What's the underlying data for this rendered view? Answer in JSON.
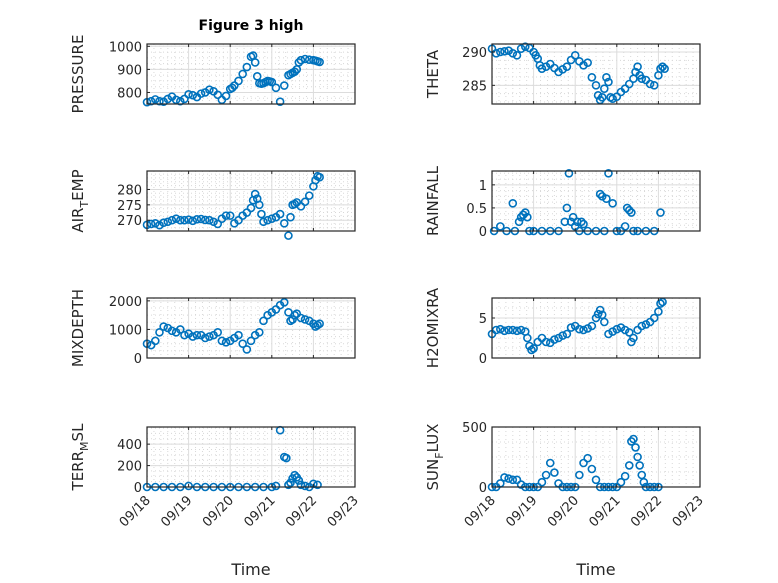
{
  "figure": {
    "title": "Figure 3 high",
    "xlabel": "Time",
    "marker_color": "#0072BD"
  },
  "chart_data": [
    {
      "type": "scatter",
      "name": "PRESSURE",
      "ylabel": "PRESSURE",
      "ylabel_parts": [
        "PRESSURE"
      ],
      "ylim": [
        750,
        1010
      ],
      "yticks": [
        800,
        900,
        1000
      ],
      "ytick_labels": [
        "800",
        "900",
        "1000"
      ],
      "xlim": [
        0,
        5
      ],
      "xticks": [
        0,
        1,
        2,
        3,
        4,
        5
      ],
      "xtick_labels": [
        "09/18",
        "09/19",
        "09/20",
        "09/21",
        "09/22",
        "09/23"
      ],
      "show_xtick_labels": false,
      "title": "Figure 3 high",
      "grid": true,
      "x": [
        0,
        0.1,
        0.2,
        0.3,
        0.4,
        0.5,
        0.6,
        0.7,
        0.8,
        0.9,
        1.0,
        1.1,
        1.2,
        1.3,
        1.4,
        1.5,
        1.6,
        1.7,
        1.8,
        1.9,
        2.0,
        2.05,
        2.1,
        2.2,
        2.3,
        2.4,
        2.5,
        2.55,
        2.6,
        2.65,
        2.7,
        2.75,
        2.8,
        2.85,
        2.9,
        2.95,
        3.0,
        3.1,
        3.2,
        3.3,
        3.4,
        3.45,
        3.5,
        3.55,
        3.6,
        3.65,
        3.7,
        3.8,
        3.9,
        4.0,
        4.05,
        4.1,
        4.15
      ],
      "y": [
        758,
        762,
        770,
        762,
        760,
        772,
        782,
        768,
        762,
        772,
        792,
        788,
        780,
        795,
        800,
        812,
        805,
        790,
        768,
        785,
        815,
        820,
        830,
        850,
        880,
        910,
        955,
        960,
        930,
        870,
        840,
        838,
        840,
        845,
        850,
        848,
        845,
        820,
        760,
        830,
        875,
        880,
        885,
        890,
        900,
        930,
        940,
        945,
        942,
        940,
        938,
        935,
        932
      ]
    },
    {
      "type": "scatter",
      "name": "THETA",
      "ylabel": "THETA",
      "ylabel_parts": [
        "THETA"
      ],
      "ylim": [
        282.2,
        291.2
      ],
      "yticks": [
        285,
        290
      ],
      "ytick_labels": [
        "285",
        "290"
      ],
      "xlim": [
        0,
        5
      ],
      "xticks": [
        0,
        1,
        2,
        3,
        4,
        5
      ],
      "xtick_labels": [
        "09/18",
        "09/19",
        "09/20",
        "09/21",
        "09/22",
        "09/23"
      ],
      "show_xtick_labels": false,
      "grid": true,
      "x": [
        0,
        0.1,
        0.2,
        0.3,
        0.4,
        0.5,
        0.6,
        0.7,
        0.8,
        0.9,
        1.0,
        1.05,
        1.1,
        1.15,
        1.2,
        1.3,
        1.4,
        1.5,
        1.6,
        1.7,
        1.8,
        1.9,
        2.0,
        2.1,
        2.2,
        2.3,
        2.4,
        2.5,
        2.55,
        2.6,
        2.65,
        2.7,
        2.75,
        2.8,
        2.85,
        2.9,
        3.0,
        3.1,
        3.2,
        3.3,
        3.4,
        3.45,
        3.5,
        3.55,
        3.6,
        3.7,
        3.8,
        3.9,
        4.0,
        4.05,
        4.1,
        4.15
      ],
      "y": [
        290.5,
        289.8,
        290,
        290.1,
        290.2,
        289.8,
        289.5,
        290.5,
        290.8,
        290.6,
        290,
        289.5,
        289,
        288,
        287.5,
        287.8,
        288.2,
        287.6,
        287,
        287.4,
        287.8,
        288.8,
        289.5,
        288.6,
        288,
        288.4,
        286.2,
        285,
        283.5,
        282.8,
        283.2,
        284.5,
        286.2,
        285.5,
        283.2,
        283,
        283.3,
        284,
        284.5,
        285.2,
        286,
        287,
        287.8,
        286.5,
        286,
        285.8,
        285.2,
        285,
        286.5,
        287.5,
        287.8,
        287.5
      ]
    },
    {
      "type": "scatter",
      "name": "AIR_TEMP",
      "ylabel": "AIR_TEMP",
      "ylabel_parts": [
        "AIR",
        "T",
        "EMP"
      ],
      "ylim": [
        266.5,
        286
      ],
      "yticks": [
        270,
        275,
        280
      ],
      "ytick_labels": [
        "270",
        "275",
        "280"
      ],
      "xlim": [
        0,
        5
      ],
      "xticks": [
        0,
        1,
        2,
        3,
        4,
        5
      ],
      "xtick_labels": [
        "09/18",
        "09/19",
        "09/20",
        "09/21",
        "09/22",
        "09/23"
      ],
      "show_xtick_labels": false,
      "grid": true,
      "x": [
        0,
        0.1,
        0.2,
        0.3,
        0.4,
        0.5,
        0.6,
        0.7,
        0.8,
        0.9,
        1.0,
        1.1,
        1.2,
        1.3,
        1.4,
        1.5,
        1.6,
        1.7,
        1.8,
        1.9,
        2.0,
        2.1,
        2.2,
        2.3,
        2.4,
        2.5,
        2.55,
        2.6,
        2.65,
        2.7,
        2.75,
        2.8,
        2.9,
        3.0,
        3.1,
        3.2,
        3.3,
        3.4,
        3.45,
        3.5,
        3.55,
        3.6,
        3.7,
        3.8,
        3.9,
        4.0,
        4.05,
        4.1,
        4.15
      ],
      "y": [
        268.5,
        268.8,
        269,
        268.4,
        269.2,
        269.5,
        270,
        270.5,
        270,
        270,
        270.2,
        269.8,
        270.3,
        270.4,
        270.1,
        270,
        269.5,
        268.8,
        270.5,
        271.5,
        271.5,
        269,
        270,
        271.5,
        272.5,
        274,
        276.5,
        278.5,
        277,
        275,
        272,
        269.5,
        270,
        270.5,
        271,
        272,
        269,
        265,
        271,
        275,
        275.3,
        275.8,
        274.5,
        276,
        278,
        281,
        283,
        284.3,
        284
      ]
    },
    {
      "type": "scatter",
      "name": "RAINFALL",
      "ylabel": "RAINFALL",
      "ylabel_parts": [
        "RAINFALL"
      ],
      "ylim": [
        0,
        1.3
      ],
      "yticks": [
        0,
        0.5,
        1
      ],
      "ytick_labels": [
        "0",
        "0.5",
        "1"
      ],
      "xlim": [
        0,
        5
      ],
      "xticks": [
        0,
        1,
        2,
        3,
        4,
        5
      ],
      "xtick_labels": [
        "09/18",
        "09/19",
        "09/20",
        "09/21",
        "09/22",
        "09/23"
      ],
      "show_xtick_labels": false,
      "grid": true,
      "x": [
        0.05,
        0.2,
        0.35,
        0.5,
        0.55,
        0.65,
        0.7,
        0.75,
        0.8,
        0.85,
        0.9,
        1.0,
        1.2,
        1.4,
        1.6,
        1.75,
        1.8,
        1.85,
        1.9,
        1.95,
        2.0,
        2.05,
        2.1,
        2.15,
        2.2,
        2.3,
        2.5,
        2.6,
        2.65,
        2.7,
        2.75,
        2.8,
        2.9,
        3.0,
        3.1,
        3.2,
        3.25,
        3.3,
        3.35,
        3.4,
        3.5,
        3.7,
        3.9,
        4.05
      ],
      "y": [
        0,
        0.1,
        0,
        0.6,
        0,
        0.2,
        0.3,
        0.35,
        0.4,
        0.3,
        0,
        0,
        0,
        0,
        0,
        0.2,
        0.5,
        1.25,
        0.2,
        0.3,
        0.1,
        0.2,
        0,
        0.2,
        0.15,
        0,
        0,
        0.8,
        0.75,
        0,
        0.7,
        1.25,
        0.6,
        0,
        0,
        0.1,
        0.5,
        0.45,
        0.4,
        0,
        0,
        0,
        0,
        0.4
      ]
    },
    {
      "type": "scatter",
      "name": "MIXDEPTH",
      "ylabel": "MIXDEPTH",
      "ylabel_parts": [
        "MIXDEPTH"
      ],
      "ylim": [
        0,
        2100
      ],
      "yticks": [
        0,
        1000,
        2000
      ],
      "ytick_labels": [
        "0",
        "1000",
        "2000"
      ],
      "xlim": [
        0,
        5
      ],
      "xticks": [
        0,
        1,
        2,
        3,
        4,
        5
      ],
      "xtick_labels": [
        "09/18",
        "09/19",
        "09/20",
        "09/21",
        "09/22",
        "09/23"
      ],
      "show_xtick_labels": false,
      "grid": true,
      "x": [
        0,
        0.1,
        0.2,
        0.3,
        0.4,
        0.5,
        0.6,
        0.7,
        0.8,
        0.9,
        1.0,
        1.1,
        1.2,
        1.3,
        1.4,
        1.5,
        1.6,
        1.7,
        1.8,
        1.9,
        2.0,
        2.1,
        2.2,
        2.3,
        2.4,
        2.5,
        2.6,
        2.7,
        2.8,
        2.9,
        3.0,
        3.1,
        3.2,
        3.3,
        3.4,
        3.45,
        3.5,
        3.55,
        3.6,
        3.7,
        3.8,
        3.9,
        4.0,
        4.05,
        4.1,
        4.15
      ],
      "y": [
        500,
        450,
        600,
        900,
        1100,
        1050,
        950,
        900,
        1000,
        800,
        850,
        750,
        800,
        800,
        700,
        750,
        800,
        900,
        600,
        550,
        600,
        700,
        800,
        500,
        300,
        600,
        800,
        900,
        1300,
        1500,
        1600,
        1700,
        1850,
        1950,
        1600,
        1300,
        1350,
        1500,
        1550,
        1400,
        1350,
        1300,
        1200,
        1100,
        1150,
        1200
      ]
    },
    {
      "type": "scatter",
      "name": "H2OMIXRA",
      "ylabel": "H2OMIXRA",
      "ylabel_parts": [
        "H2OMIXRA"
      ],
      "ylim": [
        0,
        7.5
      ],
      "yticks": [
        0,
        5
      ],
      "ytick_labels": [
        "0",
        "5"
      ],
      "xlim": [
        0,
        5
      ],
      "xticks": [
        0,
        1,
        2,
        3,
        4,
        5
      ],
      "xtick_labels": [
        "09/18",
        "09/19",
        "09/20",
        "09/21",
        "09/22",
        "09/23"
      ],
      "show_xtick_labels": false,
      "grid": true,
      "x": [
        0,
        0.1,
        0.2,
        0.3,
        0.4,
        0.5,
        0.6,
        0.7,
        0.8,
        0.85,
        0.9,
        0.95,
        1.0,
        1.1,
        1.2,
        1.3,
        1.4,
        1.5,
        1.6,
        1.7,
        1.8,
        1.9,
        2.0,
        2.1,
        2.2,
        2.3,
        2.4,
        2.5,
        2.55,
        2.6,
        2.65,
        2.7,
        2.8,
        2.9,
        3.0,
        3.1,
        3.2,
        3.3,
        3.35,
        3.4,
        3.5,
        3.6,
        3.7,
        3.8,
        3.9,
        4.0,
        4.05,
        4.1
      ],
      "y": [
        3,
        3.5,
        3.6,
        3.4,
        3.5,
        3.5,
        3.4,
        3.5,
        3.3,
        2.5,
        1.5,
        1,
        1.2,
        2,
        2.5,
        2,
        1.9,
        2.3,
        2.5,
        2.8,
        3,
        3.8,
        4,
        3.6,
        3.5,
        3.7,
        4,
        5,
        5.5,
        6,
        5.4,
        4.5,
        3,
        3.3,
        3.6,
        3.8,
        3.5,
        3.2,
        2,
        2.5,
        3.5,
        4,
        4.2,
        4.5,
        5,
        5.8,
        6.8,
        7
      ]
    },
    {
      "type": "scatter",
      "name": "TERR_MSL",
      "ylabel": "TERR_MSL",
      "ylabel_parts": [
        "TERR",
        "M",
        "SL"
      ],
      "ylim": [
        0,
        560
      ],
      "yticks": [
        0,
        200,
        400
      ],
      "ytick_labels": [
        "0",
        "200",
        "400"
      ],
      "xlim": [
        0,
        5
      ],
      "xticks": [
        0,
        1,
        2,
        3,
        4,
        5
      ],
      "xtick_labels": [
        "09/18",
        "09/19",
        "09/20",
        "09/21",
        "09/22",
        "09/23"
      ],
      "show_xtick_labels": true,
      "grid": true,
      "x": [
        0,
        0.2,
        0.4,
        0.6,
        0.8,
        1.0,
        1.2,
        1.4,
        1.6,
        1.8,
        2.0,
        2.2,
        2.4,
        2.6,
        2.8,
        3.0,
        3.1,
        3.2,
        3.3,
        3.35,
        3.4,
        3.45,
        3.5,
        3.55,
        3.6,
        3.65,
        3.7,
        3.8,
        3.9,
        4.0,
        4.1
      ],
      "y": [
        0,
        0,
        0,
        0,
        0,
        10,
        0,
        0,
        0,
        0,
        0,
        0,
        0,
        0,
        0,
        0,
        10,
        530,
        280,
        270,
        20,
        40,
        80,
        110,
        90,
        60,
        20,
        10,
        0,
        30,
        20
      ]
    },
    {
      "type": "scatter",
      "name": "SUN_FLUX",
      "ylabel": "SUN_FLUX",
      "ylabel_parts": [
        "SUN",
        "F",
        "LUX"
      ],
      "ylim": [
        0,
        500
      ],
      "yticks": [
        0,
        500
      ],
      "ytick_labels": [
        "0",
        "500"
      ],
      "xlim": [
        0,
        5
      ],
      "xticks": [
        0,
        1,
        2,
        3,
        4,
        5
      ],
      "xtick_labels": [
        "09/18",
        "09/19",
        "09/20",
        "09/21",
        "09/22",
        "09/23"
      ],
      "show_xtick_labels": true,
      "grid": true,
      "x": [
        0,
        0.1,
        0.2,
        0.3,
        0.4,
        0.5,
        0.6,
        0.7,
        0.8,
        0.9,
        1.0,
        1.1,
        1.2,
        1.3,
        1.4,
        1.5,
        1.6,
        1.7,
        1.8,
        1.9,
        2.0,
        2.1,
        2.2,
        2.3,
        2.4,
        2.5,
        2.6,
        2.7,
        2.8,
        2.9,
        3.0,
        3.1,
        3.2,
        3.3,
        3.35,
        3.4,
        3.45,
        3.5,
        3.55,
        3.6,
        3.65,
        3.7,
        3.8,
        3.9,
        4.0
      ],
      "y": [
        0,
        0,
        30,
        80,
        70,
        60,
        60,
        20,
        0,
        0,
        0,
        0,
        40,
        100,
        200,
        120,
        30,
        0,
        0,
        0,
        0,
        100,
        200,
        240,
        150,
        60,
        0,
        0,
        0,
        0,
        0,
        40,
        90,
        180,
        380,
        400,
        330,
        250,
        180,
        100,
        40,
        0,
        0,
        0,
        0
      ]
    }
  ]
}
